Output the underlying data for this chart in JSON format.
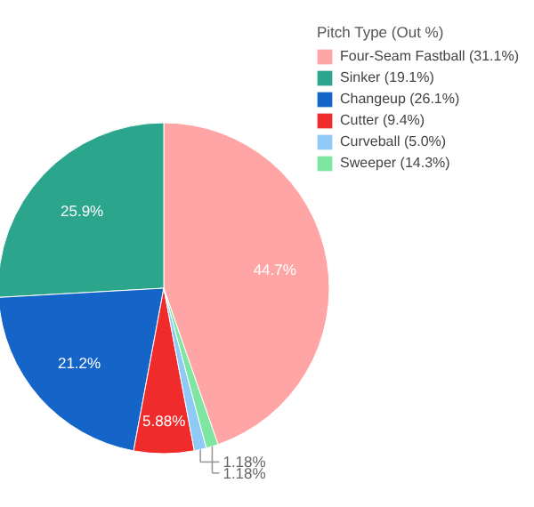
{
  "chart_data": {
    "type": "pie",
    "legend_title": "Pitch Type (Out %)",
    "categories": [
      "Four-Seam Fastball (31.1%)",
      "Sinker (19.1%)",
      "Changeup (26.1%)",
      "Cutter (9.4%)",
      "Curveball (5.0%)",
      "Sweeper (14.3%)"
    ],
    "values": [
      44.7,
      25.9,
      21.2,
      5.88,
      1.18,
      1.18
    ],
    "value_labels": [
      "44.7%",
      "25.9%",
      "21.2%",
      "5.88%",
      "1.18%",
      "1.18%"
    ],
    "colors": [
      "#ffa5a5",
      "#2ca58d",
      "#1565c8",
      "#ef2b2b",
      "#8ecaf5",
      "#7ee6a0"
    ],
    "legend": "top right"
  }
}
